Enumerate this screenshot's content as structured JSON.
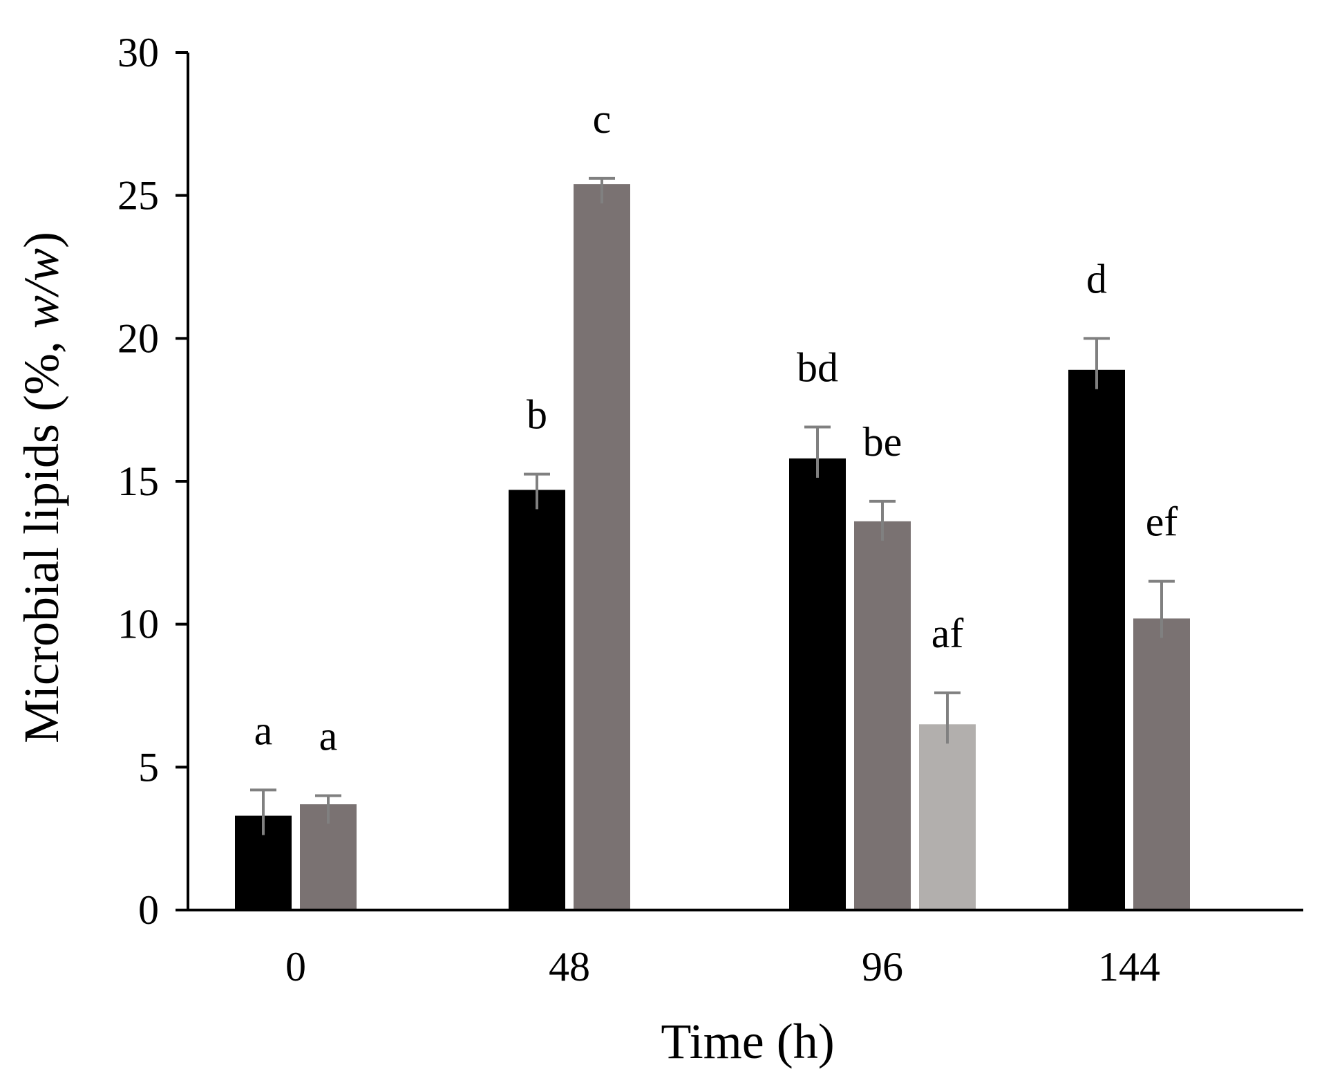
{
  "chart_data": {
    "type": "bar",
    "title": "",
    "xlabel": "Time (h)",
    "ylabel_parts": [
      "Microbial lipids (%, ",
      "w/w",
      ")"
    ],
    "ylim": [
      0,
      30
    ],
    "yticks": [
      0,
      5,
      10,
      15,
      20,
      25,
      30
    ],
    "categories": [
      "0",
      "48",
      "96",
      "144"
    ],
    "series_colors": [
      "#000000",
      "#7a7272",
      "#b2afad"
    ],
    "error_bar_color": "#808080",
    "groups": [
      {
        "category": "0",
        "bars": [
          {
            "series": 0,
            "value": 3.3,
            "error": 0.9,
            "label": "a"
          },
          {
            "series": 1,
            "value": 3.7,
            "error": 0.3,
            "label": "a"
          }
        ]
      },
      {
        "category": "48",
        "bars": [
          {
            "series": 0,
            "value": 14.7,
            "error": 0.55,
            "label": "b"
          },
          {
            "series": 1,
            "value": 25.4,
            "error": 0.2,
            "label": "c"
          }
        ]
      },
      {
        "category": "96",
        "bars": [
          {
            "series": 0,
            "value": 15.8,
            "error": 1.1,
            "label": "bd"
          },
          {
            "series": 1,
            "value": 13.6,
            "error": 0.7,
            "label": "be"
          },
          {
            "series": 2,
            "value": 6.5,
            "error": 1.1,
            "label": "af"
          }
        ]
      },
      {
        "category": "144",
        "bars": [
          {
            "series": 0,
            "value": 18.9,
            "error": 1.1,
            "label": "d"
          },
          {
            "series": 1,
            "value": 10.2,
            "error": 1.3,
            "label": "ef"
          }
        ]
      }
    ]
  }
}
